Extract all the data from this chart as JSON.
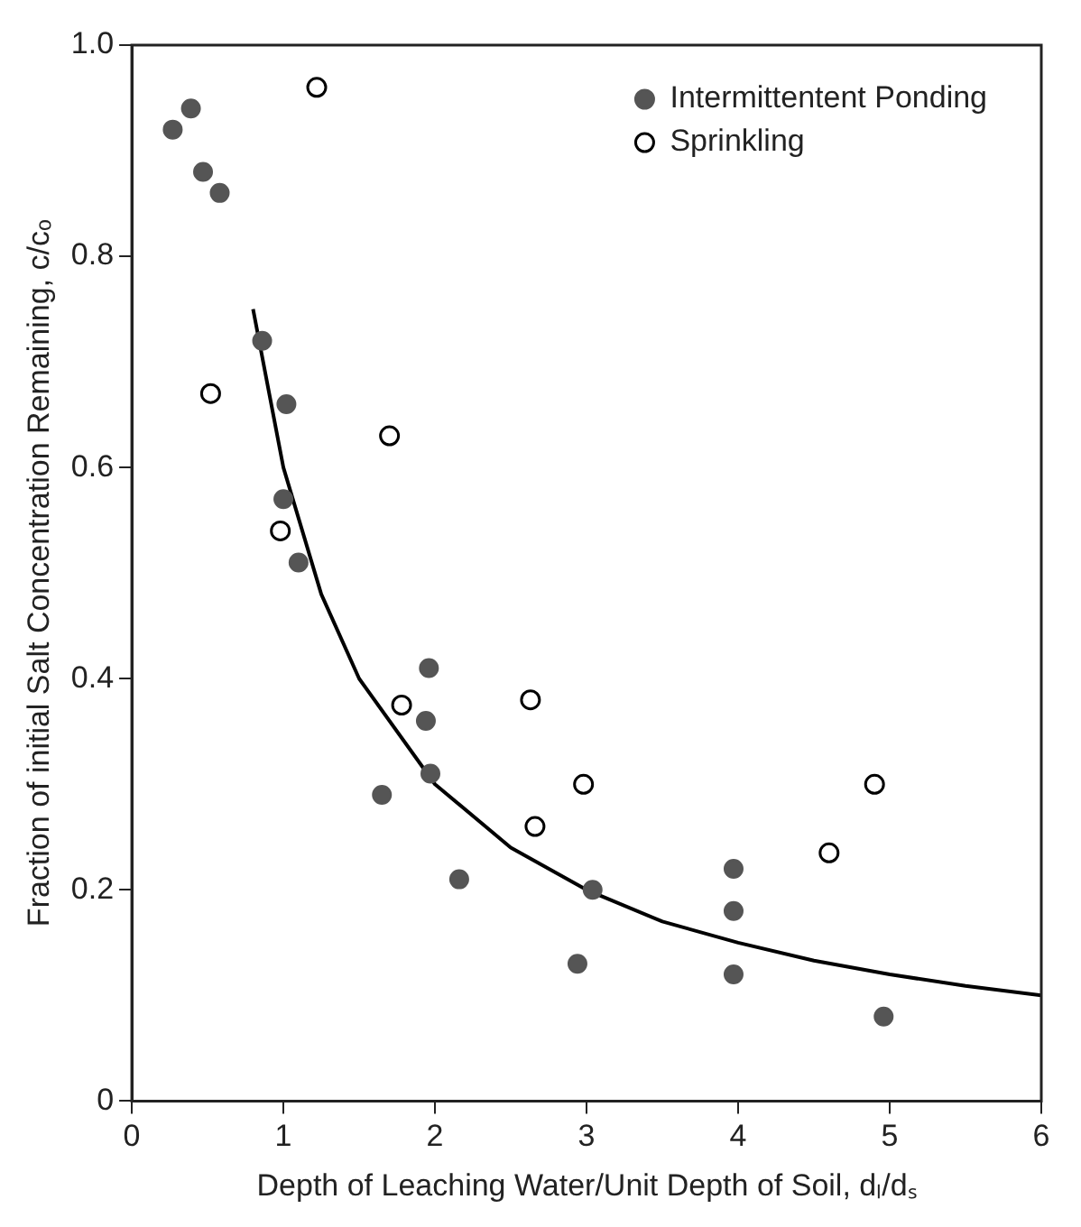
{
  "chart_data": {
    "type": "scatter",
    "xlabel": "Depth of Leaching Water/Unit Depth of Soil, dₗ/dₛ",
    "ylabel": "Fraction of initial Salt Concentration Remaining, c/cₒ",
    "xlim": [
      0,
      6
    ],
    "xticks": [
      0,
      1,
      2,
      3,
      4,
      5,
      6
    ],
    "ylim": [
      0,
      1
    ],
    "yticks": [
      0,
      0.2,
      0.4,
      0.6,
      0.8,
      {
        "value": 1,
        "label": "1.0"
      }
    ],
    "grid": false,
    "legend": "top right",
    "marker": "circle",
    "series": [
      {
        "name": "Intermittentent Ponding",
        "color": "#555555",
        "x": [
          0.27,
          0.39,
          0.47,
          0.58,
          0.86,
          1.02,
          1.0,
          1.1,
          1.96,
          1.94,
          1.97,
          1.65,
          2.16,
          3.04,
          2.94,
          3.97,
          3.97,
          3.97,
          4.96
        ],
        "values": [
          0.92,
          0.94,
          0.88,
          0.86,
          0.72,
          0.66,
          0.57,
          0.51,
          0.41,
          0.36,
          0.31,
          0.29,
          0.21,
          0.2,
          0.13,
          0.22,
          0.18,
          0.12,
          0.08
        ]
      },
      {
        "name": "Sprinkling",
        "color": "#000000",
        "x": [
          1.22,
          0.52,
          1.7,
          0.98,
          1.78,
          2.63,
          2.98,
          2.66,
          4.9,
          4.6
        ],
        "values": [
          0.96,
          0.67,
          0.63,
          0.54,
          0.375,
          0.38,
          0.3,
          0.26,
          0.3,
          0.235
        ]
      },
      {
        "type": "line",
        "color": "#000000",
        "marker": "none",
        "x": [
          0.8,
          1,
          1.25,
          1.5,
          2,
          2.5,
          3,
          3.5,
          4,
          4.5,
          5,
          5.5,
          6
        ],
        "values": [
          0.75,
          0.6,
          0.48,
          0.4,
          0.3,
          0.24,
          0.2,
          0.17,
          0.15,
          0.133,
          0.12,
          0.109,
          0.1
        ]
      }
    ]
  }
}
